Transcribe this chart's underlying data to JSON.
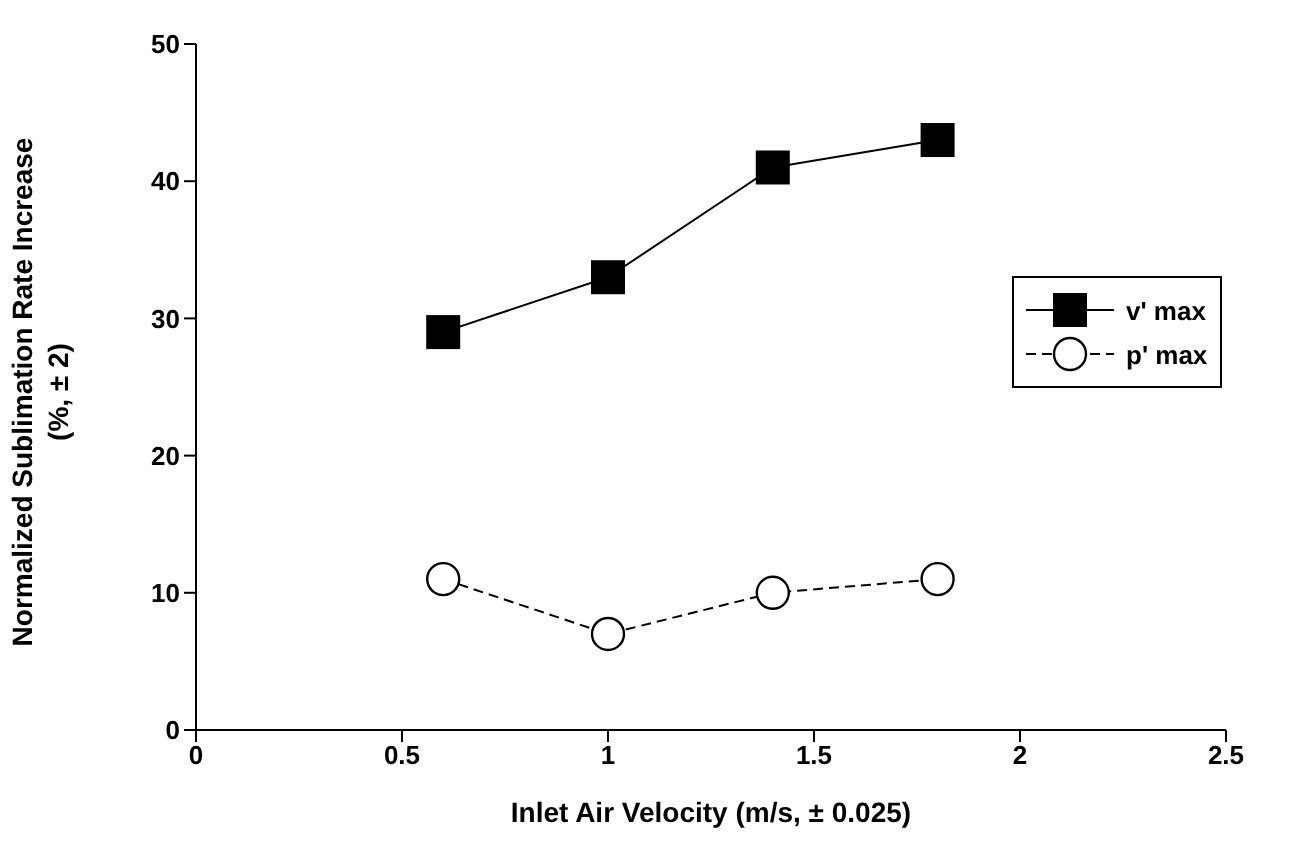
{
  "chart_data": {
    "type": "line",
    "xlabel": "Inlet Air Velocity (m/s, ± 0.025)",
    "ylabel": "Normalized Sublimation Rate Increase (%, ± 2)",
    "x": [
      0.6,
      1,
      1.4,
      1.8
    ],
    "series": [
      {
        "name": "v' max",
        "color": "#000000",
        "values": [
          29,
          33,
          41,
          43
        ],
        "marker": "square",
        "line_style": "solid"
      },
      {
        "name": "p' max",
        "color": "#000000",
        "values": [
          11,
          7,
          10,
          11
        ],
        "marker": "circle",
        "line_style": "dashed"
      }
    ],
    "xlim": [
      0,
      2.5
    ],
    "xticks": [
      0,
      0.5,
      1,
      1.5,
      2,
      2.5
    ],
    "ylim": [
      0,
      50
    ],
    "yticks": [
      0,
      10,
      20,
      30,
      40,
      50
    ],
    "grid": false,
    "legend": "right"
  }
}
